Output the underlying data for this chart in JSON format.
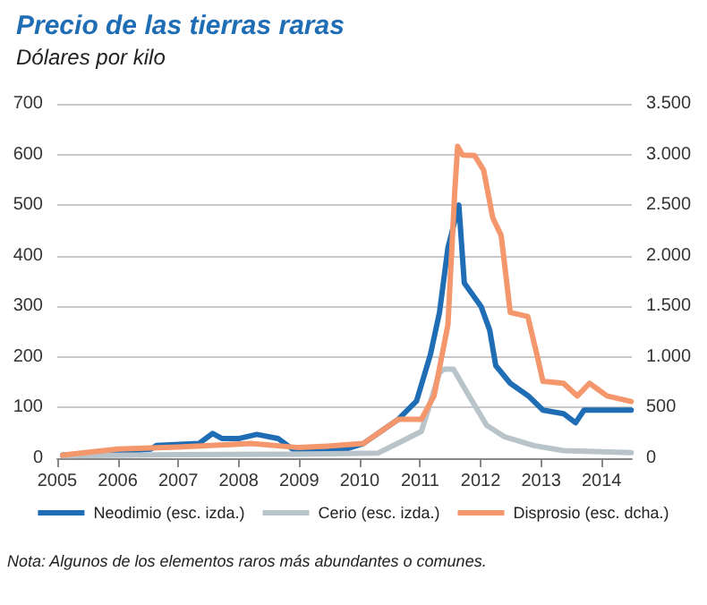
{
  "chart_data": {
    "type": "line",
    "title": "Precio de las tierras raras",
    "subtitle": "Dólares por kilo",
    "annotations": [
      "Nota: Algunos de los elementos raros más abundantes o comunes."
    ],
    "xlim": [
      2005,
      2014.5
    ],
    "xticks": [
      2005,
      2006,
      2007,
      2008,
      2009,
      2010,
      2011,
      2012,
      2013,
      2014
    ],
    "ylim": [
      0,
      700
    ],
    "yticks": [
      0,
      100,
      200,
      300,
      400,
      500,
      600,
      700
    ],
    "y2lim": [
      0,
      3500
    ],
    "y2ticks": [
      0,
      {
        "value": 500,
        "label": "500"
      },
      {
        "value": 1000,
        "label": "1.000"
      },
      {
        "value": 1500,
        "label": "1.500"
      },
      {
        "value": 2000,
        "label": "2.000"
      },
      {
        "value": 2500,
        "label": "2.500"
      },
      {
        "value": 3000,
        "label": "3.000"
      },
      {
        "value": 3500,
        "label": "3.500"
      }
    ],
    "grid": "y",
    "legend": "bottom",
    "marker": "none",
    "line_style": "solid",
    "series": [
      {
        "name": "Neodimio (esc. izda.)",
        "color": "#1f6db5",
        "x": [
          2005.09,
          2006.0,
          2006.55,
          2006.64,
          2007.34,
          2007.57,
          2007.72,
          2008.01,
          2008.3,
          2008.65,
          2008.89,
          2009.47,
          2009.77,
          2010.06,
          2010.64,
          2010.94,
          2011.17,
          2011.32,
          2011.46,
          2011.64,
          2011.73,
          2012.01,
          2012.15,
          2012.25,
          2012.49,
          2012.79,
          2013.03,
          2013.37,
          2013.57,
          2013.71,
          2014.0,
          2014.49
        ],
        "values": [
          6,
          12,
          18,
          25,
          29,
          49,
          39,
          39,
          47,
          39,
          18,
          18,
          18,
          29,
          77,
          113,
          205,
          288,
          416,
          500,
          346,
          299,
          253,
          183,
          148,
          123,
          95,
          88,
          70,
          95,
          95,
          95
        ]
      },
      {
        "name": "Cerio (esc. izda.)",
        "color": "#b8c4c9",
        "x": [
          2005.09,
          2007.0,
          2009.0,
          2010.3,
          2010.64,
          2011.02,
          2011.14,
          2011.32,
          2011.4,
          2011.55,
          2011.81,
          2012.1,
          2012.4,
          2012.88,
          2013.37,
          2014.49
        ],
        "values": [
          5,
          7,
          8,
          10,
          30,
          53,
          99,
          169,
          176,
          176,
          123,
          65,
          42,
          25,
          15,
          11
        ]
      },
      {
        "name": "Disprosio (esc. dcha.)",
        "color": "#f4976c",
        "axis": "y2",
        "x": [
          2005.09,
          2006.0,
          2007.0,
          2008.2,
          2009.0,
          2009.47,
          2010.06,
          2010.35,
          2010.64,
          2011.02,
          2011.23,
          2011.46,
          2011.57,
          2011.62,
          2011.7,
          2011.9,
          2012.05,
          2012.2,
          2012.34,
          2012.49,
          2012.78,
          2012.93,
          2013.03,
          2013.37,
          2013.6,
          2013.8,
          2014.09,
          2014.49
        ],
        "values": [
          30,
          90,
          110,
          145,
          105,
          120,
          145,
          265,
          385,
          385,
          615,
          1320,
          2610,
          3080,
          2995,
          2990,
          2845,
          2375,
          2200,
          1440,
          1400,
          1025,
          760,
          740,
          615,
          740,
          615,
          560
        ]
      }
    ]
  }
}
